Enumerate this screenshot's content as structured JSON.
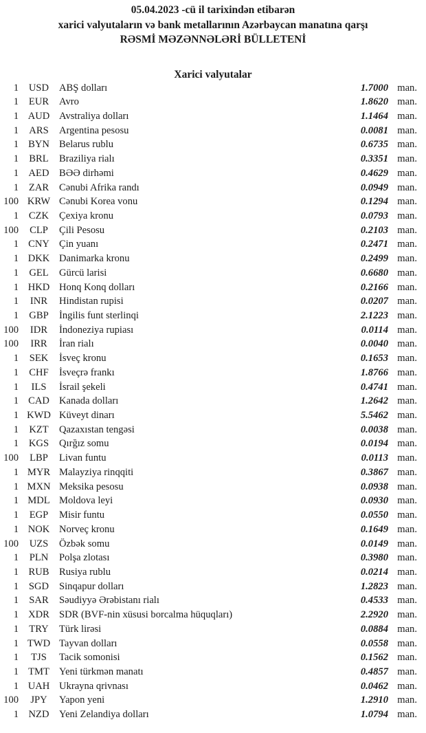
{
  "colors": {
    "background": "#ffffff",
    "text": "#1b1b1b"
  },
  "header": {
    "line1": "05.04.2023 -cü il tarixindən etibarən",
    "line2": "xarici valyutaların və bank metallarının Azərbaycan manatına qarşı",
    "line3": "RƏSMİ MƏZƏNNƏLƏRİ BÜLLETENİ"
  },
  "section_title": "Xarici valyutalar",
  "unit_label": "man.",
  "rates": [
    {
      "qty": "1",
      "code": "USD",
      "name": "ABŞ dolları",
      "rate": "1.7000"
    },
    {
      "qty": "1",
      "code": "EUR",
      "name": "Avro",
      "rate": "1.8620"
    },
    {
      "qty": "1",
      "code": "AUD",
      "name": "Avstraliya dolları",
      "rate": "1.1464"
    },
    {
      "qty": "1",
      "code": "ARS",
      "name": "Argentina pesosu",
      "rate": "0.0081"
    },
    {
      "qty": "1",
      "code": "BYN",
      "name": "Belarus rublu",
      "rate": "0.6735"
    },
    {
      "qty": "1",
      "code": "BRL",
      "name": "Braziliya rialı",
      "rate": "0.3351"
    },
    {
      "qty": "1",
      "code": "AED",
      "name": "BƏƏ dirhəmi",
      "rate": "0.4629"
    },
    {
      "qty": "1",
      "code": "ZAR",
      "name": "Cənubi Afrika randı",
      "rate": "0.0949"
    },
    {
      "qty": "100",
      "code": "KRW",
      "name": "Cənubi Korea vonu",
      "rate": "0.1294"
    },
    {
      "qty": "1",
      "code": "CZK",
      "name": "Çexiya kronu",
      "rate": "0.0793"
    },
    {
      "qty": "100",
      "code": "CLP",
      "name": "Çili Pesosu",
      "rate": "0.2103"
    },
    {
      "qty": "1",
      "code": "CNY",
      "name": "Çin yuanı",
      "rate": "0.2471"
    },
    {
      "qty": "1",
      "code": "DKK",
      "name": "Danimarka kronu",
      "rate": "0.2499"
    },
    {
      "qty": "1",
      "code": "GEL",
      "name": "Gürcü larisi",
      "rate": "0.6680"
    },
    {
      "qty": "1",
      "code": "HKD",
      "name": "Honq Konq dolları",
      "rate": "0.2166"
    },
    {
      "qty": "1",
      "code": "INR",
      "name": "Hindistan rupisi",
      "rate": "0.0207"
    },
    {
      "qty": "1",
      "code": "GBP",
      "name": "İngilis funt sterlinqi",
      "rate": "2.1223"
    },
    {
      "qty": "100",
      "code": "IDR",
      "name": "İndoneziya rupiası",
      "rate": "0.0114"
    },
    {
      "qty": "100",
      "code": "IRR",
      "name": "İran rialı",
      "rate": "0.0040"
    },
    {
      "qty": "1",
      "code": "SEK",
      "name": "İsveç kronu",
      "rate": "0.1653"
    },
    {
      "qty": "1",
      "code": "CHF",
      "name": "İsveçrə frankı",
      "rate": "1.8766"
    },
    {
      "qty": "1",
      "code": "ILS",
      "name": "İsrail şekeli",
      "rate": "0.4741"
    },
    {
      "qty": "1",
      "code": "CAD",
      "name": "Kanada dolları",
      "rate": "1.2642"
    },
    {
      "qty": "1",
      "code": "KWD",
      "name": "Küveyt dinarı",
      "rate": "5.5462"
    },
    {
      "qty": "1",
      "code": "KZT",
      "name": "Qazaxıstan tengəsi",
      "rate": "0.0038"
    },
    {
      "qty": "1",
      "code": "KGS",
      "name": "Qırğız somu",
      "rate": "0.0194"
    },
    {
      "qty": "100",
      "code": "LBP",
      "name": "Livan funtu",
      "rate": "0.0113"
    },
    {
      "qty": "1",
      "code": "MYR",
      "name": "Malayziya rinqqiti",
      "rate": "0.3867"
    },
    {
      "qty": "1",
      "code": "MXN",
      "name": "Meksika pesosu",
      "rate": "0.0938"
    },
    {
      "qty": "1",
      "code": "MDL",
      "name": "Moldova leyi",
      "rate": "0.0930"
    },
    {
      "qty": "1",
      "code": "EGP",
      "name": "Misir funtu",
      "rate": "0.0550"
    },
    {
      "qty": "1",
      "code": "NOK",
      "name": "Norveç kronu",
      "rate": "0.1649"
    },
    {
      "qty": "100",
      "code": "UZS",
      "name": "Özbək somu",
      "rate": "0.0149"
    },
    {
      "qty": "1",
      "code": "PLN",
      "name": "Polşa zlotası",
      "rate": "0.3980"
    },
    {
      "qty": "1",
      "code": "RUB",
      "name": "Rusiya rublu",
      "rate": "0.0214"
    },
    {
      "qty": "1",
      "code": "SGD",
      "name": "Sinqapur dolları",
      "rate": "1.2823"
    },
    {
      "qty": "1",
      "code": "SAR",
      "name": "Səudiyyə Ərəbistanı rialı",
      "rate": "0.4533"
    },
    {
      "qty": "1",
      "code": "XDR",
      "name": "SDR (BVF-nin xüsusi borcalma hüquqları)",
      "rate": "2.2920"
    },
    {
      "qty": "1",
      "code": "TRY",
      "name": "Türk lirəsi",
      "rate": "0.0884"
    },
    {
      "qty": "1",
      "code": "TWD",
      "name": "Tayvan dolları",
      "rate": "0.0558"
    },
    {
      "qty": "1",
      "code": "TJS",
      "name": "Tacik somonisi",
      "rate": "0.1562"
    },
    {
      "qty": "1",
      "code": "TMT",
      "name": "Yeni türkmən manatı",
      "rate": "0.4857"
    },
    {
      "qty": "1",
      "code": "UAH",
      "name": "Ukrayna qrivnası",
      "rate": "0.0462"
    },
    {
      "qty": "100",
      "code": "JPY",
      "name": "Yapon yeni",
      "rate": "1.2910"
    },
    {
      "qty": "1",
      "code": "NZD",
      "name": "Yeni Zelandiya dolları",
      "rate": "1.0794"
    }
  ]
}
